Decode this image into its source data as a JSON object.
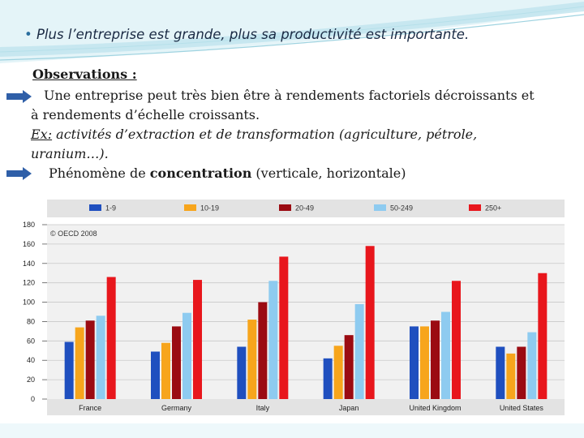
{
  "slide": {
    "title_bullet": "•",
    "title": "Plus l’entreprise est grande, plus sa productivité est importante.",
    "observations_heading": "Observations :",
    "paragraph1_line1": "Une entreprise peut très bien être à rendements factoriels décroissants et",
    "paragraph1_line2": "à rendements d’échelle croissants.",
    "example_label": "Ex:",
    "example_text": " activités d’extraction et de transformation (agriculture, pétrole, uranium…).",
    "concentration_before": "Phénomène de ",
    "concentration_bold": "concentration",
    "concentration_after": " (verticale, horizontale)",
    "arrow_color": "#2f5fa8",
    "bg_swoosh_color": "#9fd3e0"
  },
  "chart_data": {
    "type": "bar",
    "title": "",
    "xlabel": "",
    "ylabel": "",
    "ylim": [
      0,
      180
    ],
    "yticks": [
      0,
      20,
      40,
      60,
      80,
      100,
      120,
      140,
      160,
      180
    ],
    "categories": [
      "France",
      "Germany",
      "Italy",
      "Japan",
      "United Kingdom",
      "United States"
    ],
    "series": [
      {
        "name": "1-9",
        "color": "#1f4fbf",
        "values": [
          59,
          49,
          54,
          42,
          75,
          54
        ]
      },
      {
        "name": "10-19",
        "color": "#f7a51c",
        "values": [
          74,
          58,
          82,
          55,
          75,
          47
        ]
      },
      {
        "name": "20-49",
        "color": "#9b0b12",
        "values": [
          81,
          75,
          100,
          66,
          81,
          54
        ]
      },
      {
        "name": "50-249",
        "color": "#8ecbf0",
        "values": [
          86,
          89,
          122,
          98,
          90,
          69
        ]
      },
      {
        "name": "250+",
        "color": "#e8161c",
        "values": [
          126,
          123,
          147,
          158,
          122,
          130
        ]
      }
    ],
    "annotation": "© OECD 2008",
    "grid": true,
    "legend_position": "top"
  }
}
